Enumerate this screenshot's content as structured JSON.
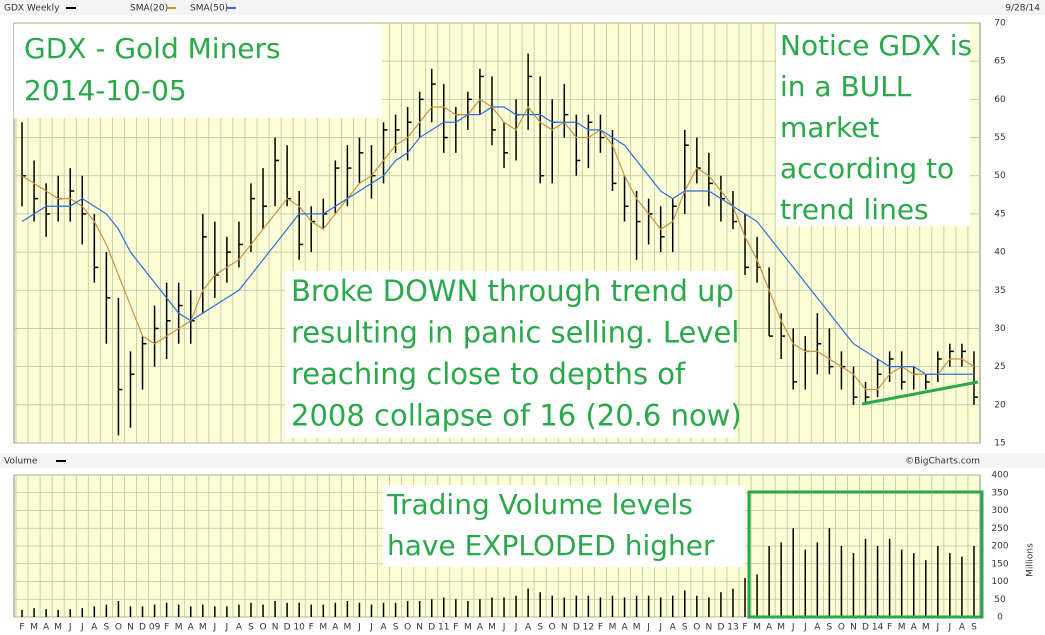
{
  "chart_data": {
    "type": "stock",
    "title": "GDX Weekly",
    "date": "9/28/14",
    "credit": "©BigCharts.com",
    "volume_label": "Volume",
    "volume_unit": "Millions",
    "categories": [
      "F",
      "M",
      "A",
      "M",
      "J",
      "J",
      "A",
      "S",
      "O",
      "N",
      "D",
      "09",
      "F",
      "M",
      "A",
      "M",
      "J",
      "J",
      "A",
      "S",
      "O",
      "N",
      "D",
      "10",
      "F",
      "M",
      "A",
      "M",
      "J",
      "J",
      "A",
      "S",
      "O",
      "N",
      "D",
      "11",
      "F",
      "M",
      "A",
      "M",
      "J",
      "J",
      "A",
      "S",
      "O",
      "N",
      "D",
      "12",
      "F",
      "M",
      "A",
      "M",
      "J",
      "J",
      "A",
      "S",
      "O",
      "N",
      "D",
      "13",
      "F",
      "M",
      "A",
      "M",
      "J",
      "J",
      "A",
      "S",
      "O",
      "N",
      "D",
      "14",
      "F",
      "M",
      "A",
      "M",
      "J",
      "J",
      "A",
      "S"
    ],
    "high": [
      57,
      52,
      49,
      50,
      51,
      50,
      45,
      40,
      34,
      27,
      29,
      33,
      36,
      36,
      35,
      45,
      44,
      42,
      44,
      49,
      51,
      55,
      54,
      48,
      46,
      47,
      52,
      54,
      55,
      54,
      57,
      58,
      59,
      61,
      64,
      62,
      59,
      61,
      64,
      63,
      57,
      60,
      66,
      63,
      60,
      62,
      58,
      58,
      58,
      56,
      50,
      48,
      47,
      46,
      47,
      56,
      55,
      53,
      50,
      48,
      45,
      42,
      38,
      32,
      30,
      29,
      32,
      30,
      27,
      25,
      23,
      26,
      27,
      27,
      25,
      24,
      27,
      28,
      28,
      27
    ],
    "low": [
      46,
      44,
      42,
      44,
      44,
      41,
      36,
      28,
      16,
      17,
      22,
      25,
      26,
      28,
      28,
      32,
      34,
      36,
      38,
      40,
      43,
      46,
      46,
      39,
      40,
      43,
      45,
      46,
      49,
      47,
      49,
      53,
      52,
      55,
      57,
      53,
      53,
      56,
      58,
      54,
      51,
      52,
      56,
      49,
      49,
      55,
      50,
      51,
      53,
      48,
      44,
      39,
      41,
      40,
      40,
      45,
      49,
      46,
      44,
      43,
      37,
      36,
      29,
      26,
      22,
      22,
      24,
      24,
      22,
      20,
      20,
      21,
      23,
      22,
      22,
      22,
      23,
      25,
      25,
      20
    ],
    "close": [
      50,
      47,
      45,
      47,
      48,
      45,
      38,
      34,
      22,
      24,
      28,
      30,
      31,
      33,
      31,
      42,
      37,
      40,
      41,
      47,
      46,
      52,
      47,
      41,
      44,
      45,
      51,
      51,
      53,
      50,
      56,
      56,
      57,
      60,
      62,
      55,
      58,
      60,
      63,
      56,
      53,
      58,
      63,
      50,
      57,
      58,
      52,
      57,
      55,
      49,
      46,
      44,
      45,
      42,
      46,
      54,
      51,
      49,
      47,
      44,
      38,
      38,
      29,
      29,
      23,
      27,
      28,
      25,
      25,
      21,
      21,
      24,
      26,
      23,
      24,
      23,
      26,
      27,
      27,
      21
    ],
    "series": [
      {
        "name": "SMA(20)",
        "color": "#c8963c",
        "values": [
          50,
          49,
          48,
          47,
          47,
          46,
          44,
          41,
          37,
          33,
          29,
          28,
          29,
          30,
          31,
          35,
          37,
          38,
          39,
          41,
          43,
          45,
          47,
          46,
          44,
          43,
          45,
          47,
          49,
          50,
          52,
          54,
          55,
          57,
          59,
          59,
          58,
          58,
          60,
          59,
          57,
          56,
          59,
          57,
          56,
          57,
          55,
          55,
          56,
          54,
          50,
          47,
          45,
          43,
          44,
          48,
          51,
          50,
          48,
          46,
          42,
          39,
          35,
          31,
          28,
          27,
          27,
          26,
          25,
          24,
          22,
          22,
          24,
          25,
          24,
          24,
          24,
          26,
          26,
          25
        ]
      },
      {
        "name": "SMA(50)",
        "color": "#2e6fd8",
        "values": [
          44,
          45,
          46,
          46,
          46,
          47,
          46,
          45,
          43,
          40,
          38,
          36,
          34,
          32,
          31,
          32,
          33,
          34,
          35,
          37,
          39,
          41,
          43,
          45,
          45,
          45,
          46,
          47,
          48,
          49,
          50,
          52,
          53,
          55,
          56,
          57,
          57,
          58,
          58,
          59,
          59,
          58,
          58,
          58,
          57,
          57,
          57,
          56,
          56,
          55,
          54,
          52,
          50,
          48,
          47,
          48,
          48,
          48,
          47,
          46,
          45,
          44,
          42,
          40,
          38,
          36,
          34,
          32,
          30,
          28,
          27,
          26,
          25,
          25,
          25,
          24,
          24,
          24,
          24,
          24
        ]
      }
    ],
    "volume": [
      20,
      25,
      22,
      20,
      22,
      25,
      30,
      35,
      45,
      30,
      30,
      35,
      40,
      35,
      30,
      35,
      30,
      30,
      35,
      40,
      35,
      45,
      40,
      40,
      35,
      35,
      40,
      45,
      40,
      35,
      40,
      40,
      45,
      45,
      50,
      55,
      50,
      45,
      50,
      55,
      55,
      60,
      80,
      70,
      60,
      55,
      60,
      60,
      55,
      60,
      55,
      60,
      60,
      55,
      60,
      75,
      60,
      55,
      70,
      80,
      110,
      120,
      200,
      210,
      250,
      190,
      210,
      250,
      200,
      180,
      220,
      200,
      220,
      190,
      180,
      160,
      200,
      180,
      170,
      200
    ],
    "ylim": [
      15,
      70
    ],
    "yticks": [
      15,
      20,
      25,
      30,
      35,
      40,
      45,
      50,
      55,
      60,
      65,
      70
    ],
    "vlim": [
      0,
      400
    ],
    "vticks": [
      0,
      50,
      100,
      150,
      200,
      250,
      300,
      350,
      400
    ],
    "grid": true,
    "annotations": [
      {
        "lines": [
          "GDX - Gold Miners",
          "2014-10-05"
        ]
      },
      {
        "lines": [
          "Notice GDX is",
          "in a BULL",
          "market",
          "according to",
          "trend lines"
        ]
      },
      {
        "lines": [
          "Broke DOWN through trend up",
          "resulting in panic selling.  Level",
          "reaching close to depths of",
          "2008 collapse of 16 (20.6 now)"
        ]
      },
      {
        "lines": [
          "Trading Volume levels",
          "have EXPLODED higher"
        ]
      }
    ]
  }
}
